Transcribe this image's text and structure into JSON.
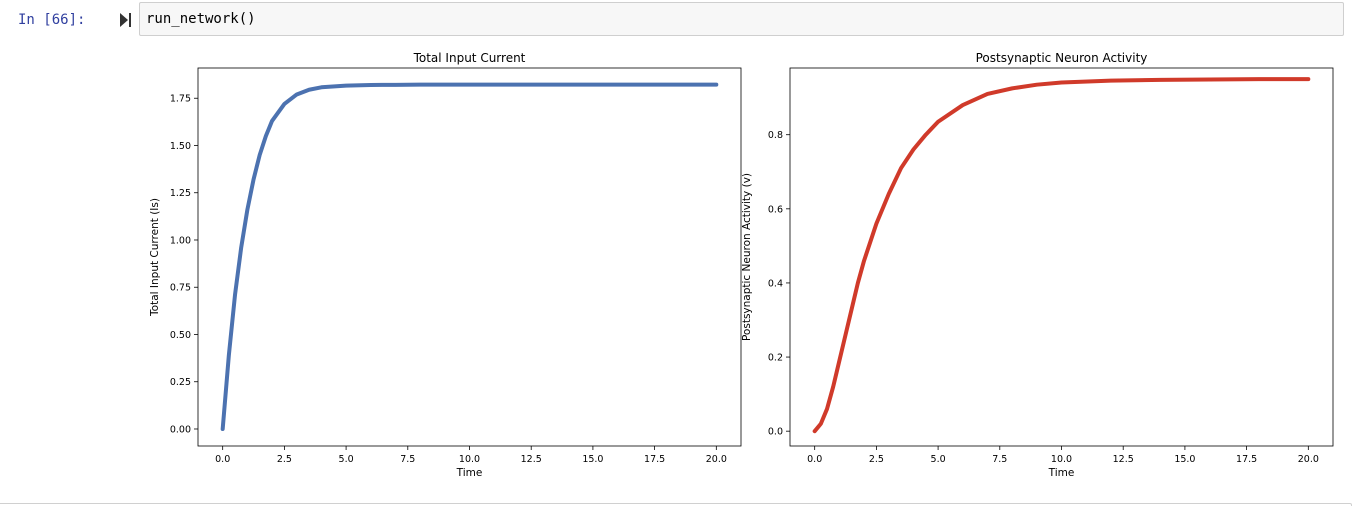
{
  "cell": {
    "prompt": "In [66]:",
    "code": "run_network()",
    "run_icon": "run-cell-icon"
  },
  "colors": {
    "prompt": "#303f9f",
    "left_series": "#4c72b0",
    "right_series": "#d03a2a"
  },
  "chart_data": [
    {
      "type": "line",
      "title": "Total Input Current",
      "xlabel": "Time",
      "ylabel": "Total Input Current (Is)",
      "xlim": [
        -1.0,
        21.0
      ],
      "ylim": [
        -0.09,
        1.91
      ],
      "xticks": [
        0.0,
        2.5,
        5.0,
        7.5,
        10.0,
        12.5,
        15.0,
        17.5,
        20.0
      ],
      "xtick_labels": [
        "0.0",
        "2.5",
        "5.0",
        "7.5",
        "10.0",
        "12.5",
        "15.0",
        "17.5",
        "20.0"
      ],
      "yticks": [
        0.0,
        0.25,
        0.5,
        0.75,
        1.0,
        1.25,
        1.5,
        1.75
      ],
      "ytick_labels": [
        "0.00",
        "0.25",
        "0.50",
        "0.75",
        "1.00",
        "1.25",
        "1.50",
        "1.75"
      ],
      "grid": false,
      "series": [
        {
          "x": [
            0,
            0.25,
            0.5,
            0.75,
            1.0,
            1.25,
            1.5,
            1.75,
            2.0,
            2.5,
            3.0,
            3.5,
            4.0,
            5.0,
            6.0,
            7.0,
            8.0,
            10.0,
            12.5,
            15.0,
            17.5,
            20.0
          ],
          "y": [
            0.0,
            0.39,
            0.71,
            0.96,
            1.16,
            1.32,
            1.45,
            1.55,
            1.63,
            1.72,
            1.77,
            1.795,
            1.808,
            1.817,
            1.82,
            1.821,
            1.822,
            1.822,
            1.822,
            1.822,
            1.822,
            1.822
          ]
        }
      ]
    },
    {
      "type": "line",
      "title": "Postsynaptic Neuron Activity",
      "xlabel": "Time",
      "ylabel": "Postsynaptic Neuron Activity (v)",
      "xlim": [
        -1.0,
        21.0
      ],
      "ylim": [
        -0.04,
        0.98
      ],
      "xticks": [
        0.0,
        2.5,
        5.0,
        7.5,
        10.0,
        12.5,
        15.0,
        17.5,
        20.0
      ],
      "xtick_labels": [
        "0.0",
        "2.5",
        "5.0",
        "7.5",
        "10.0",
        "12.5",
        "15.0",
        "17.5",
        "20.0"
      ],
      "yticks": [
        0.0,
        0.2,
        0.4,
        0.6,
        0.8
      ],
      "ytick_labels": [
        "0.0",
        "0.2",
        "0.4",
        "0.6",
        "0.8"
      ],
      "grid": false,
      "series": [
        {
          "x": [
            0,
            0.25,
            0.5,
            0.75,
            1.0,
            1.25,
            1.5,
            1.75,
            2.0,
            2.5,
            3.0,
            3.5,
            4.0,
            4.5,
            5.0,
            6.0,
            7.0,
            8.0,
            9.0,
            10.0,
            12.0,
            14.0,
            16.0,
            18.0,
            20.0
          ],
          "y": [
            0.0,
            0.02,
            0.06,
            0.12,
            0.19,
            0.26,
            0.33,
            0.4,
            0.46,
            0.56,
            0.64,
            0.71,
            0.76,
            0.8,
            0.835,
            0.88,
            0.91,
            0.925,
            0.935,
            0.941,
            0.946,
            0.948,
            0.949,
            0.95,
            0.95
          ]
        }
      ]
    }
  ]
}
